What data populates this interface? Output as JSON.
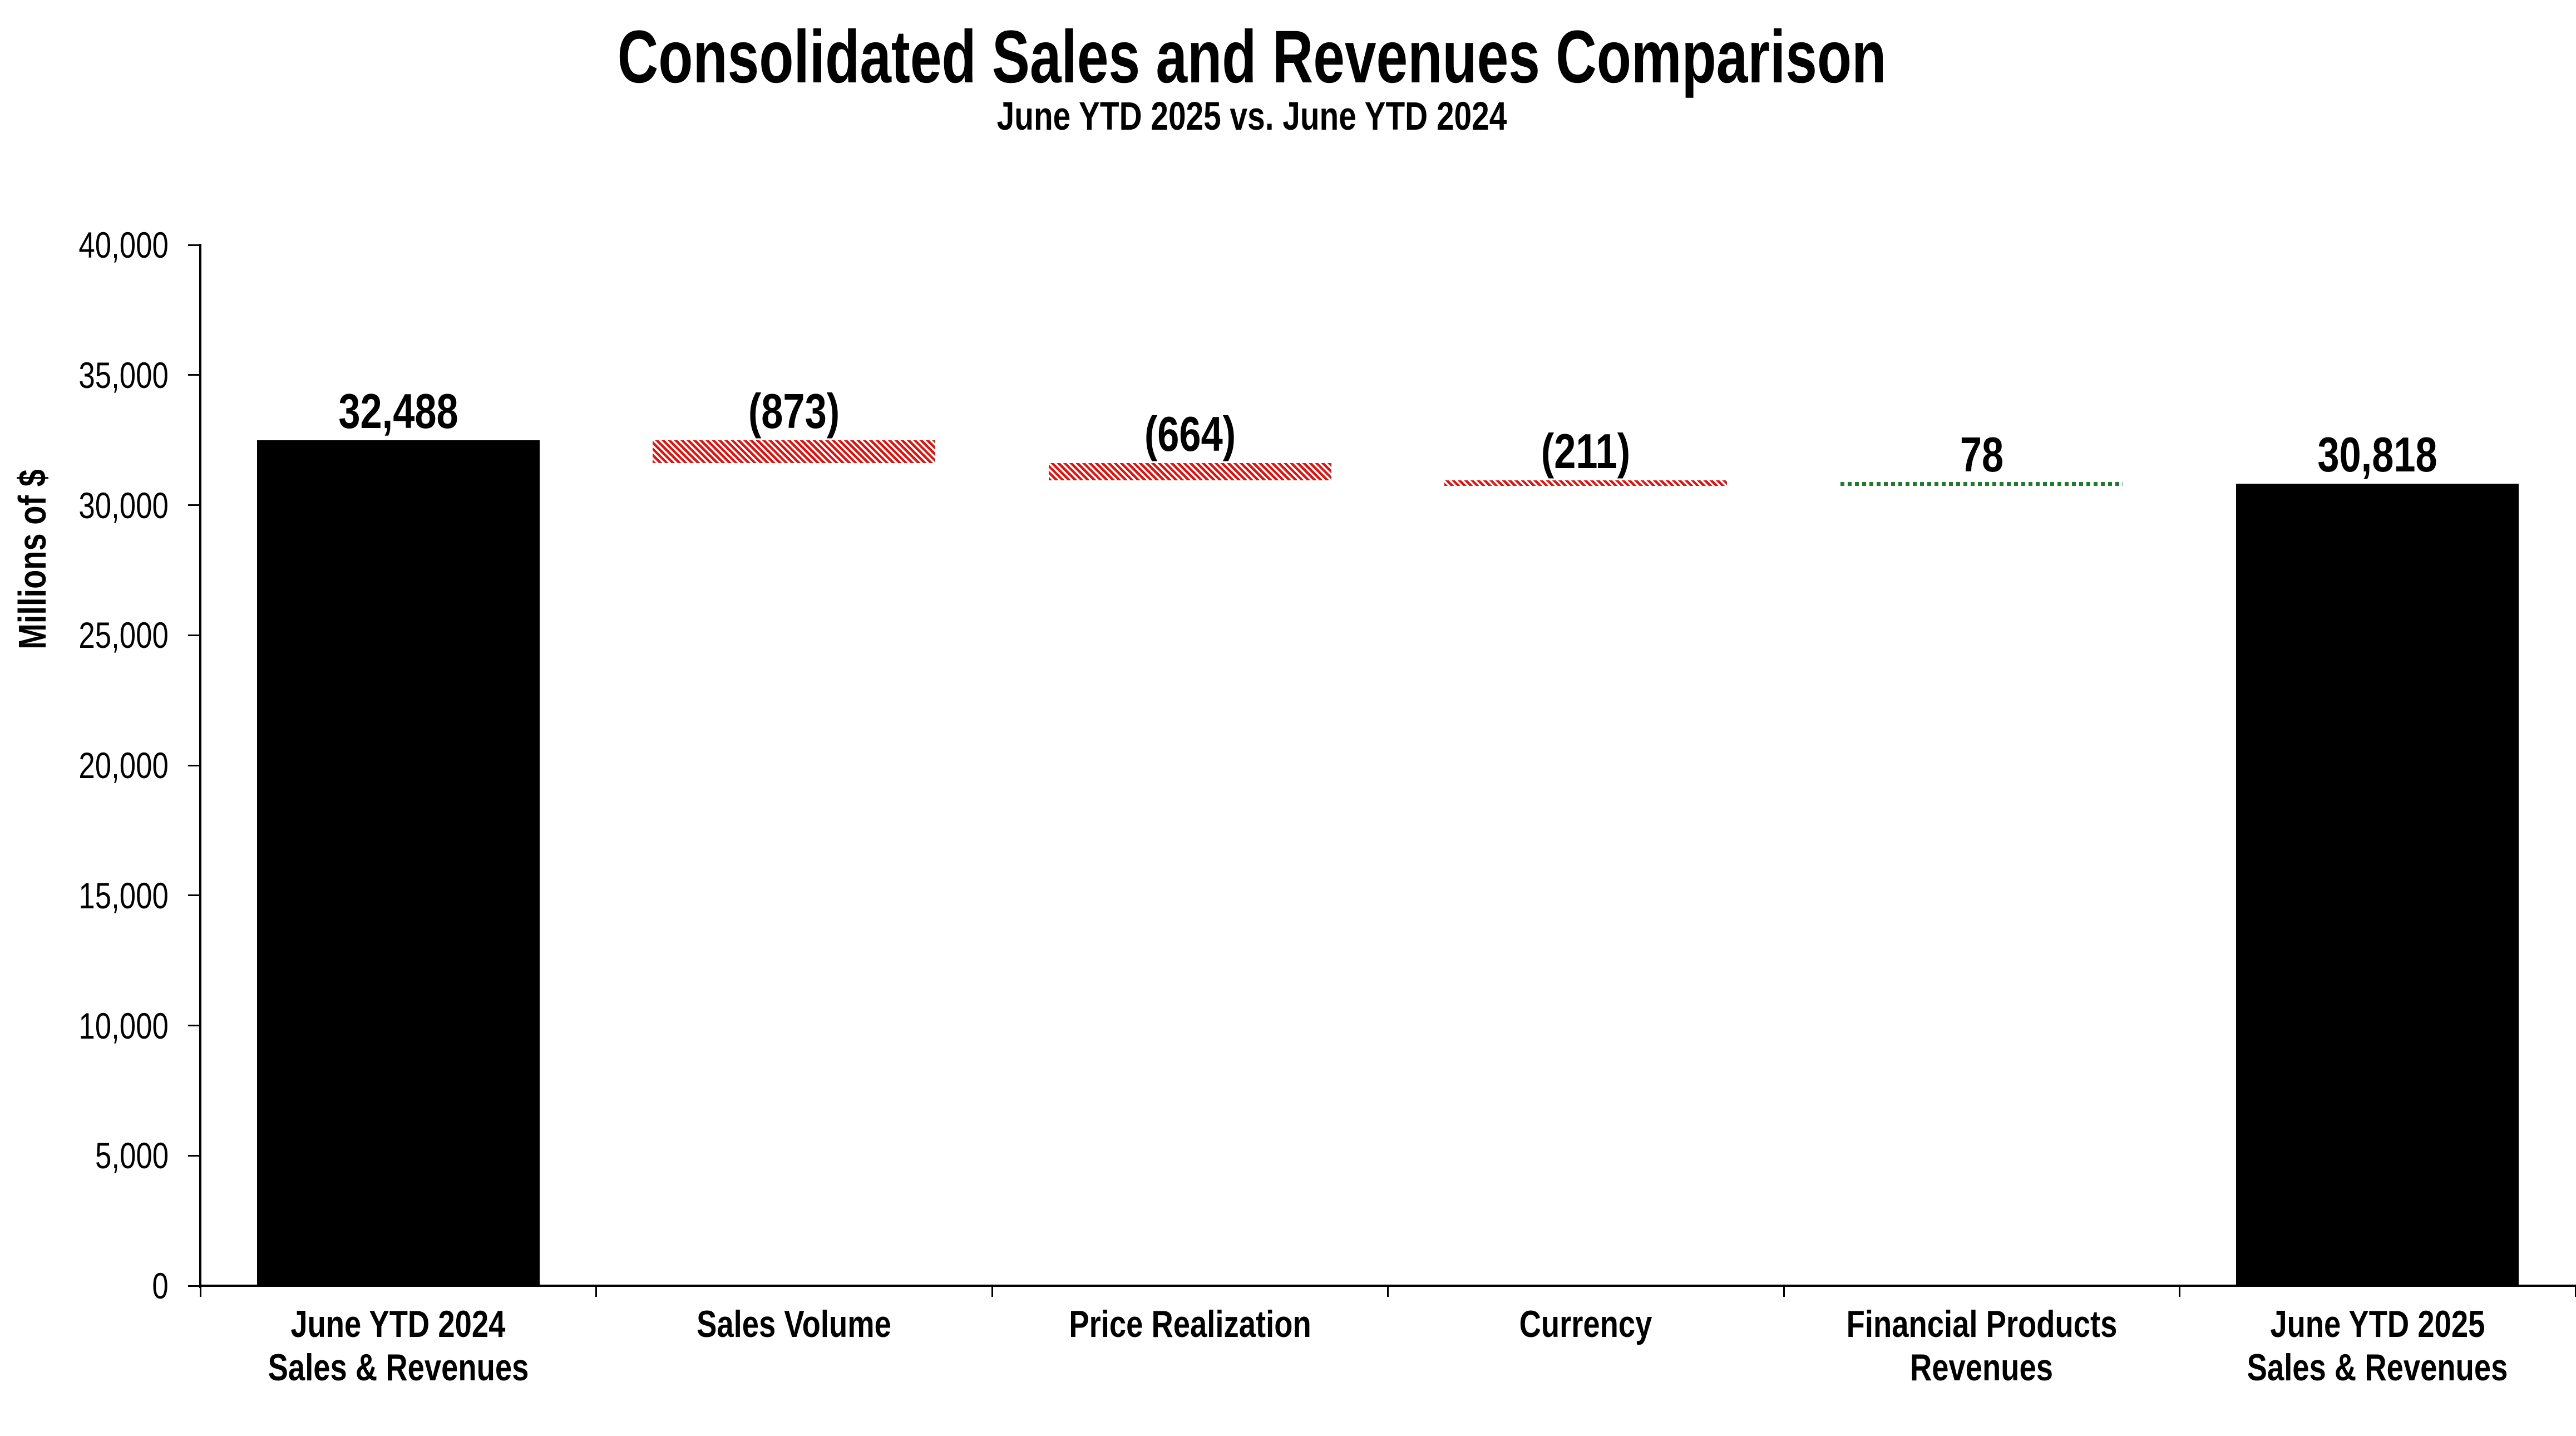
{
  "chart_data": {
    "type": "bar",
    "subtype": "waterfall",
    "title": "Consolidated Sales and Revenues Comparison",
    "subtitle": "June YTD 2025 vs. June YTD 2024",
    "ylabel": "Millions of $",
    "ylim": [
      0,
      40000
    ],
    "ytick_step": 5000,
    "ytick_labels": [
      "0",
      "5,000",
      "10,000",
      "15,000",
      "20,000",
      "25,000",
      "30,000",
      "35,000",
      "40,000"
    ],
    "grid": false,
    "legend": false,
    "categories": [
      "June YTD 2024\nSales & Revenues",
      "Sales Volume",
      "Price Realization",
      "Currency",
      "Financial Products\nRevenues",
      "June YTD 2025\nSales & Revenues"
    ],
    "bars": [
      {
        "category": "June YTD 2024\nSales & Revenues",
        "value": 32488,
        "display": "32,488",
        "start": 0,
        "end": 32488,
        "style": "total"
      },
      {
        "category": "Sales Volume",
        "value": -873,
        "display": "(873)",
        "start": 32488,
        "end": 31615,
        "style": "decrease"
      },
      {
        "category": "Price Realization",
        "value": -664,
        "display": "(664)",
        "start": 31615,
        "end": 30951,
        "style": "decrease"
      },
      {
        "category": "Currency",
        "value": -211,
        "display": "(211)",
        "start": 30951,
        "end": 30740,
        "style": "decrease"
      },
      {
        "category": "Financial Products\nRevenues",
        "value": 78,
        "display": "78",
        "start": 30740,
        "end": 30818,
        "style": "increase"
      },
      {
        "category": "June YTD 2025\nSales & Revenues",
        "value": 30818,
        "display": "30,818",
        "start": 0,
        "end": 30818,
        "style": "total"
      }
    ],
    "colors": {
      "total": "#000000",
      "decrease_hatch": "#da1511",
      "increase_dots": "#1e7b2d",
      "axis": "#000000",
      "background": "#ffffff"
    }
  }
}
